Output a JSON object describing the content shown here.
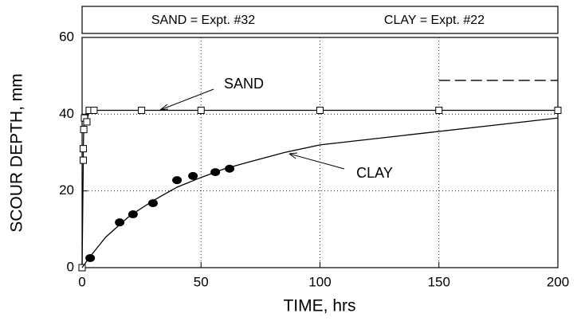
{
  "chart_data": {
    "type": "line",
    "header": [
      "SAND = Expt. #32",
      "CLAY = Expt. #22"
    ],
    "xlabel": "TIME, hrs",
    "ylabel": "SCOUR DEPTH, mm",
    "annotations": [
      "SAND",
      "CLAY"
    ],
    "xlim": [
      0,
      200
    ],
    "ylim": [
      0,
      60
    ],
    "xticks": [
      0,
      50,
      100,
      150,
      200
    ],
    "yticks": [
      0,
      20,
      40,
      60
    ],
    "grid": true,
    "series": [
      {
        "marker": "square",
        "line": "solid",
        "color": "#000000",
        "x": [
          0,
          0.5,
          0.5,
          0.7,
          1,
          2,
          3,
          5,
          25,
          50,
          100,
          150,
          200
        ],
        "values": [
          0,
          28,
          31,
          36,
          39,
          38,
          41,
          41,
          41,
          41,
          41,
          41,
          41
        ]
      },
      {
        "marker": "circle",
        "line": "none",
        "color": "#000000",
        "x": [
          3.4,
          15.8,
          21.4,
          29.8,
          39.9,
          46.6,
          56,
          62
        ],
        "values": [
          2.5,
          11.8,
          13.9,
          16.8,
          22.8,
          23.9,
          24.9,
          25.8
        ]
      },
      {
        "marker": "none",
        "line": "solid",
        "color": "#000000",
        "x": [
          0,
          3,
          10,
          20,
          30,
          40,
          50,
          60,
          70,
          85,
          100,
          200
        ],
        "values": [
          0,
          2.6,
          8,
          13.5,
          17.5,
          21,
          23.5,
          25.8,
          27.5,
          30,
          32,
          39
        ]
      },
      {
        "marker": "none",
        "line": "dashed",
        "color": "#000000",
        "x": [
          150,
          200
        ],
        "values": [
          48.8,
          48.8
        ]
      }
    ]
  }
}
